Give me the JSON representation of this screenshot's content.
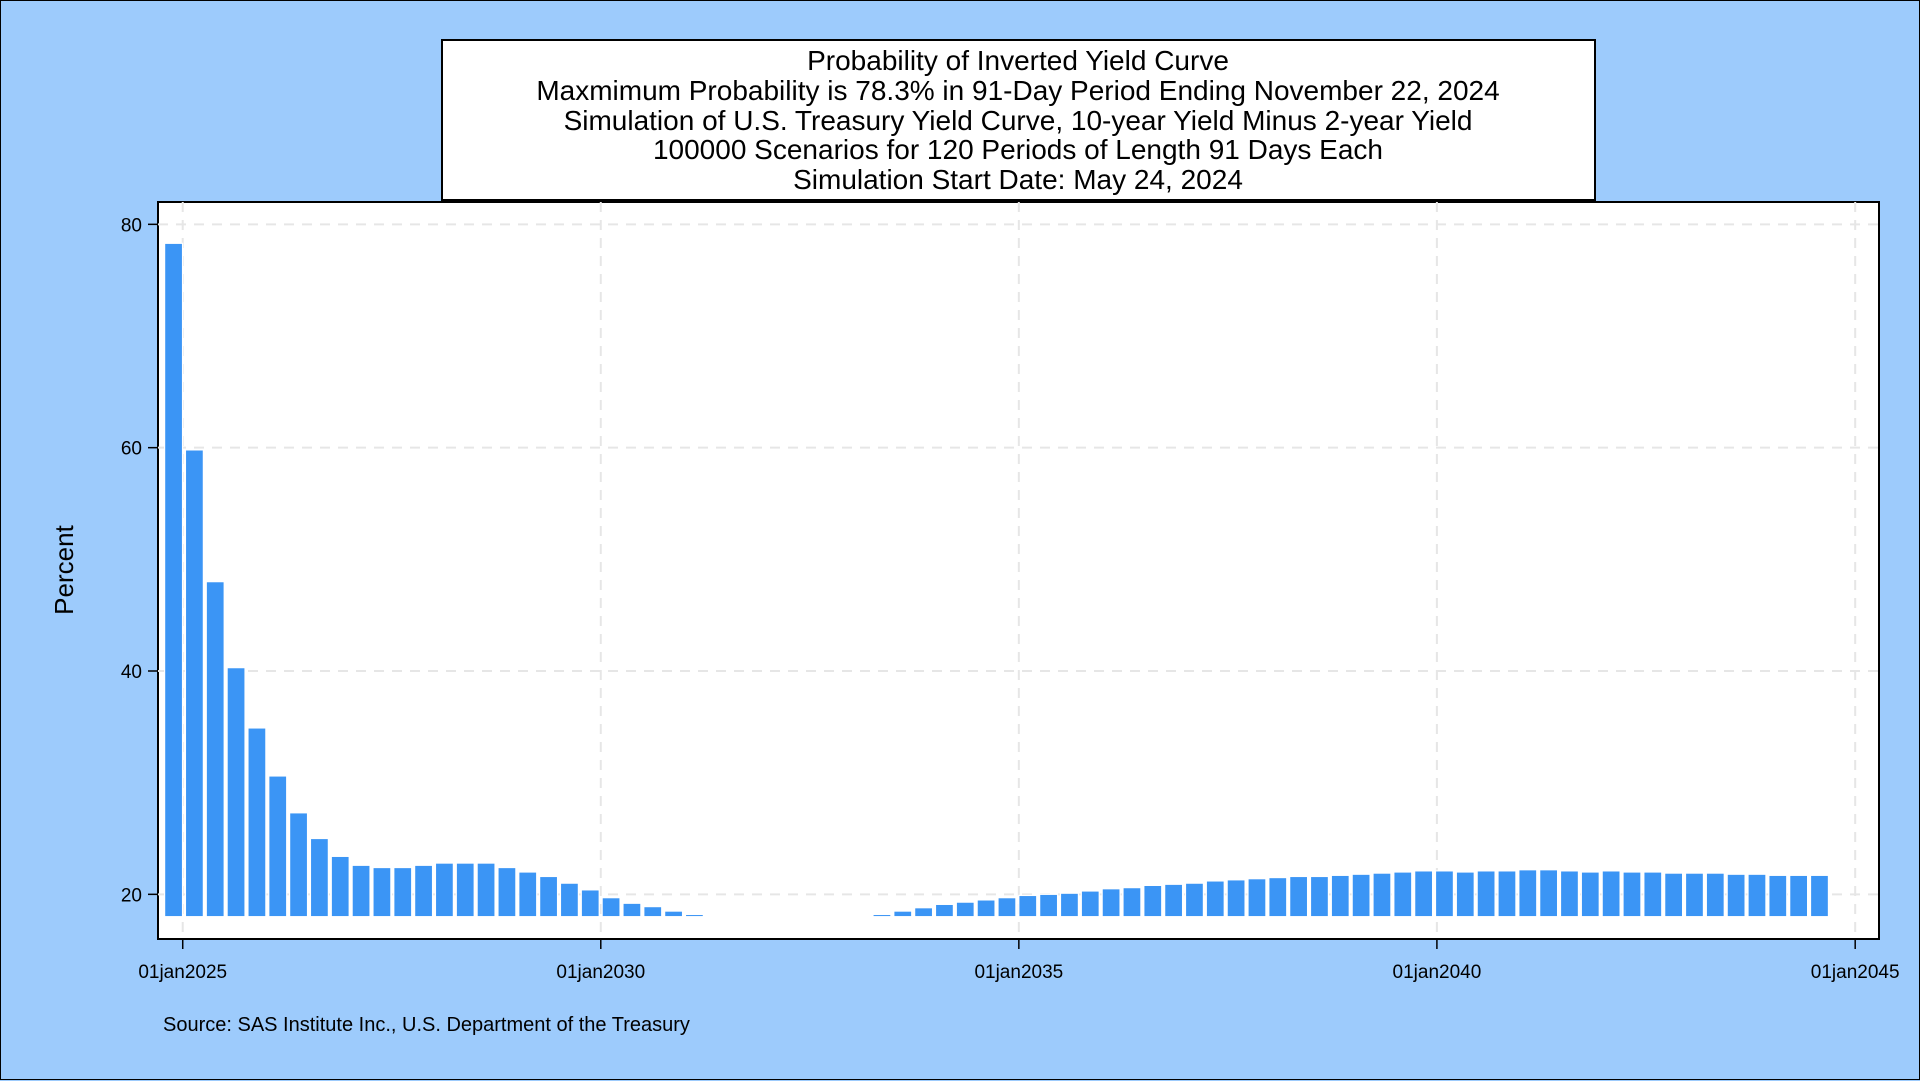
{
  "chart_data": {
    "type": "bar",
    "title_lines": [
      "Probability of Inverted Yield Curve",
      "Maxmimum Probability is 78.3% in 91-Day Period Ending November 22, 2024",
      "Simulation of U.S. Treasury Yield Curve, 10-year Yield Minus 2-year Yield",
      "100000 Scenarios for 120 Periods of Length 91 Days Each",
      "Simulation Start Date: May 24, 2024"
    ],
    "ylabel": "Percent",
    "xlabel": "",
    "note": "Source: SAS Institute Inc., U.S. Department of the Treasury",
    "x_tick_labels": [
      "01jan2025",
      "01jan2030",
      "01jan2035",
      "01jan2040",
      "01jan2045"
    ],
    "x_ticks": [
      "2025-01-01",
      "2030-01-01",
      "2035-01-01",
      "2040-01-01",
      "2045-01-01"
    ],
    "y_ticks": [
      20,
      40,
      60,
      80
    ],
    "ylim": [
      16,
      82
    ],
    "xlim": [
      "2024-09-15",
      "2045-04-15"
    ],
    "bar_base": 18,
    "grid": true,
    "bar_color": "#3b95f5",
    "background_color": "#9dcbfc",
    "series": [
      {
        "x": [
          "2024-11-22",
          "2025-02-21",
          "2025-05-23",
          "2025-08-22",
          "2025-11-21",
          "2026-02-20",
          "2026-05-22",
          "2026-08-21",
          "2026-11-20",
          "2027-02-19",
          "2027-05-21",
          "2027-08-20",
          "2027-11-19",
          "2028-02-18",
          "2028-05-19",
          "2028-08-18",
          "2028-11-17",
          "2029-02-16",
          "2029-05-18",
          "2029-08-17",
          "2029-11-16",
          "2030-02-15",
          "2030-05-17",
          "2030-08-16",
          "2030-11-15",
          "2031-02-14",
          "2031-05-16",
          "2031-08-15",
          "2031-11-14",
          "2032-02-13",
          "2032-05-14",
          "2032-08-13",
          "2032-11-12",
          "2033-02-11",
          "2033-05-13",
          "2033-08-12",
          "2033-11-11",
          "2034-02-10",
          "2034-05-12",
          "2034-08-11",
          "2034-11-10",
          "2035-02-09",
          "2035-05-11",
          "2035-08-10",
          "2035-11-09",
          "2036-02-08",
          "2036-05-09",
          "2036-08-08",
          "2036-11-07",
          "2037-02-06",
          "2037-05-08",
          "2037-08-07",
          "2037-11-06",
          "2038-02-05",
          "2038-05-07",
          "2038-08-06",
          "2038-11-05",
          "2039-02-04",
          "2039-05-06",
          "2039-08-05",
          "2039-11-04",
          "2040-02-03",
          "2040-05-04",
          "2040-08-03",
          "2040-11-02",
          "2041-02-01",
          "2041-05-03",
          "2041-08-02",
          "2041-11-01",
          "2042-01-31",
          "2042-05-02",
          "2042-08-01",
          "2042-10-31",
          "2043-01-30",
          "2043-05-01",
          "2043-07-31",
          "2043-10-30",
          "2044-01-29",
          "2044-04-29",
          "2044-07-29"
        ],
        "values": [
          78.3,
          59.8,
          48.0,
          40.3,
          34.9,
          30.6,
          27.3,
          25.0,
          23.4,
          22.6,
          22.4,
          22.4,
          22.6,
          22.8,
          22.8,
          22.8,
          22.4,
          22.0,
          21.6,
          21.0,
          20.4,
          19.7,
          19.2,
          18.9,
          18.5,
          18.2,
          18.1,
          17.9,
          17.8,
          17.7,
          17.8,
          17.9,
          18.0,
          18.1,
          18.2,
          18.5,
          18.8,
          19.1,
          19.3,
          19.5,
          19.7,
          19.9,
          20.0,
          20.1,
          20.3,
          20.5,
          20.6,
          20.8,
          20.9,
          21.0,
          21.2,
          21.3,
          21.4,
          21.5,
          21.6,
          21.6,
          21.7,
          21.8,
          21.9,
          22.0,
          22.1,
          22.1,
          22.0,
          22.1,
          22.1,
          22.2,
          22.2,
          22.1,
          22.0,
          22.1,
          22.0,
          22.0,
          21.9,
          21.9,
          21.9,
          21.8,
          21.8,
          21.7,
          21.7,
          21.7
        ]
      }
    ]
  }
}
